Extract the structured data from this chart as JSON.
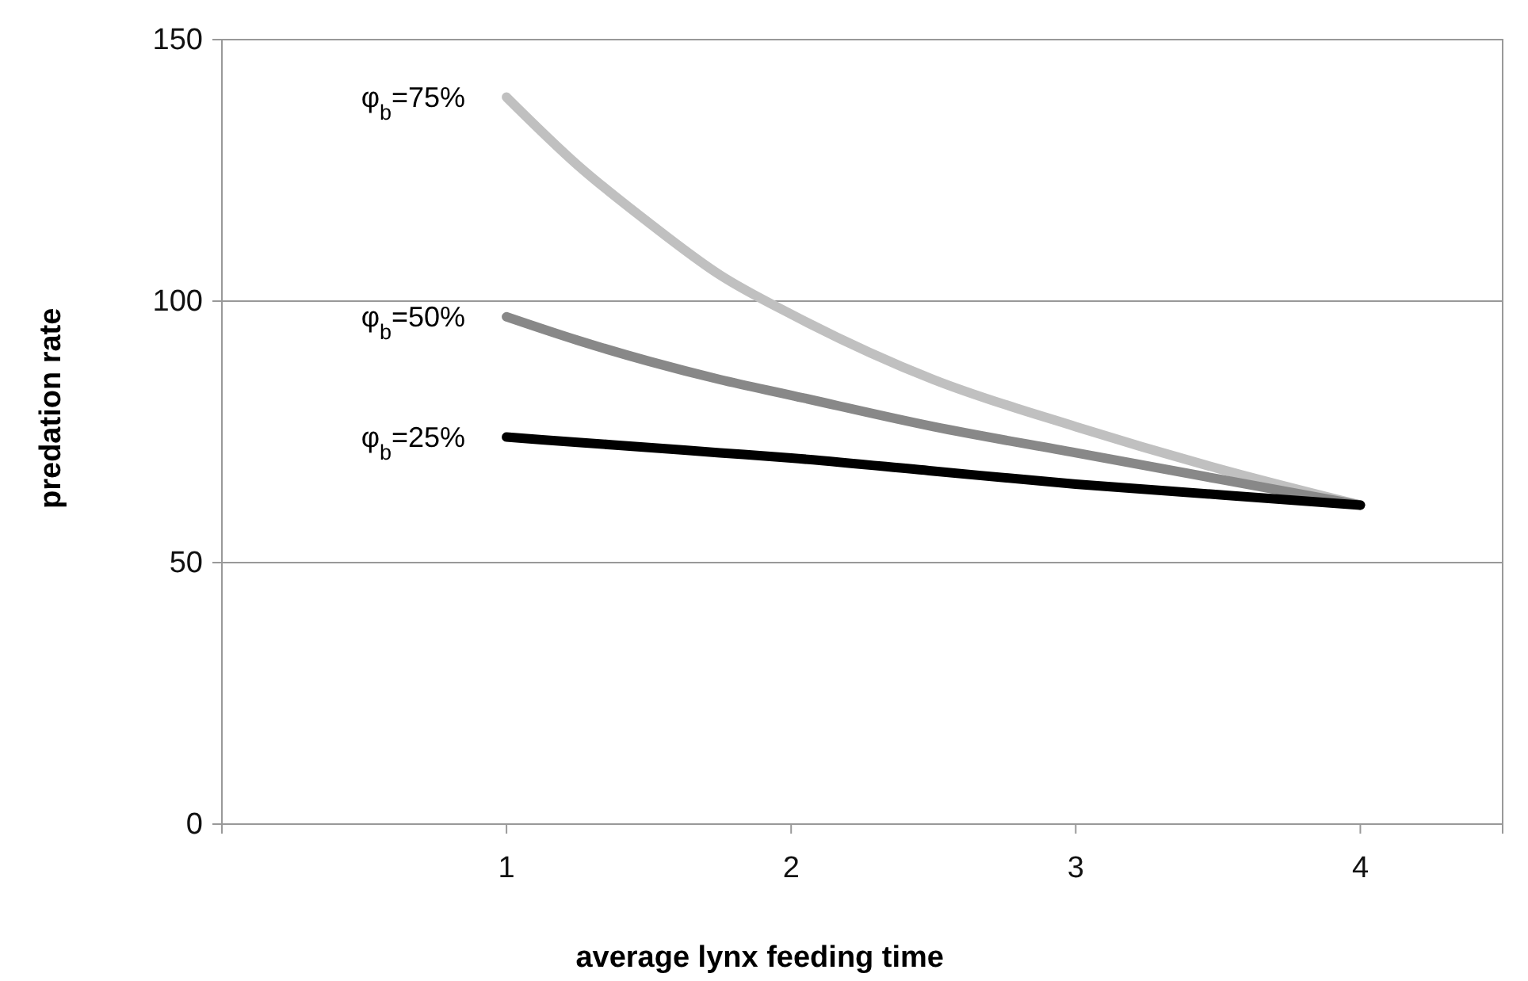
{
  "chart_data": {
    "type": "line",
    "xlabel": "average lynx feeding time",
    "ylabel": "predation rate",
    "xlim": [
      0,
      4.5
    ],
    "xticks": [
      1,
      2,
      3,
      4
    ],
    "ylim": [
      0,
      150
    ],
    "yticks": [
      0,
      50,
      100,
      150
    ],
    "grid": "y",
    "legend": false,
    "marker": "none",
    "line_style": "solid",
    "x": [
      1,
      1.25,
      1.5,
      1.75,
      2,
      2.5,
      3,
      3.5,
      4
    ],
    "series": [
      {
        "name": "φ$_{b}$=75%",
        "color": "#c0c0c0",
        "values": [
          139,
          126,
          115,
          105,
          97.5,
          85,
          76,
          68,
          61
        ]
      },
      {
        "name": "φ$_{b}$=50%",
        "color": "#888888",
        "values": [
          97,
          92.5,
          88.5,
          85,
          82,
          76,
          71,
          66,
          61
        ]
      },
      {
        "name": "φ$_{b}$=25%",
        "color": "#000000",
        "values": [
          74,
          73,
          72,
          71,
          70,
          67.5,
          65,
          63,
          61
        ]
      }
    ]
  }
}
